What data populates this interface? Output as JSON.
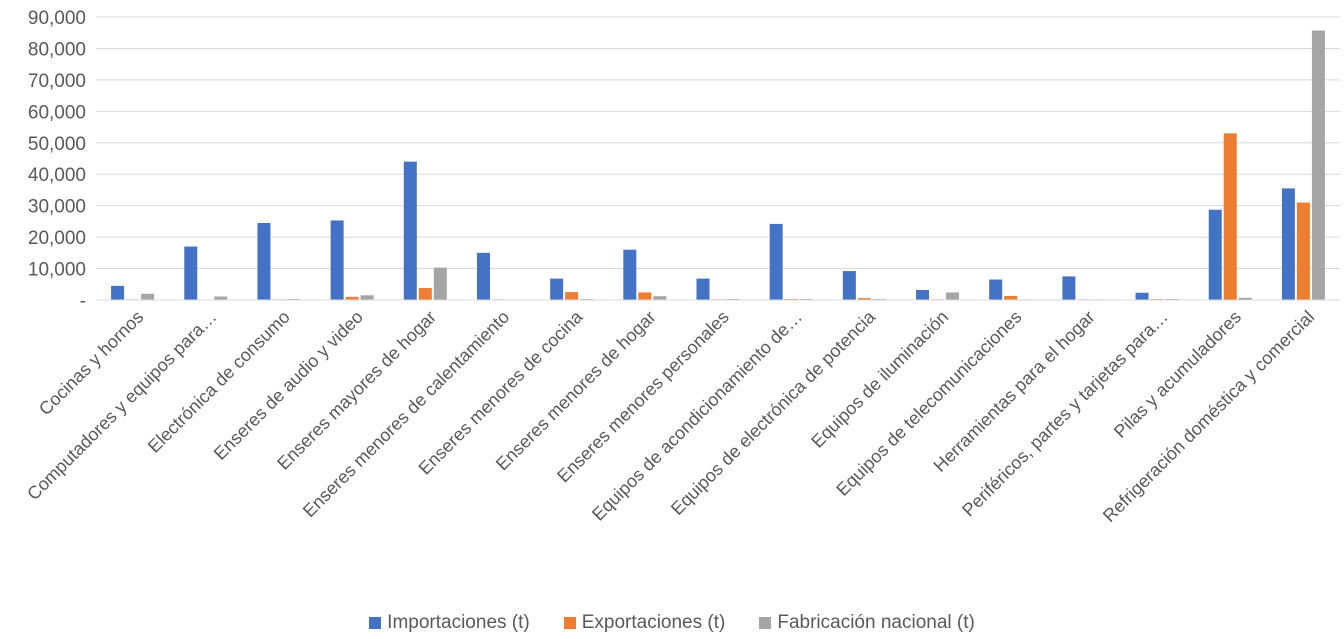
{
  "chart_data": {
    "type": "bar",
    "title": "",
    "xlabel": "",
    "ylabel": "",
    "ylim": [
      0,
      90000
    ],
    "yticks": [
      0,
      10000,
      20000,
      30000,
      40000,
      50000,
      60000,
      70000,
      80000,
      90000
    ],
    "ytick_labels": [
      "-",
      "10,000",
      "20,000",
      "30,000",
      "40,000",
      "50,000",
      "60,000",
      "70,000",
      "80,000",
      "90,000"
    ],
    "categories": [
      "Cocinas y hornos",
      "Computadores y equipos para…",
      "Electrónica de consumo",
      "Enseres de audio y video",
      "Enseres mayores de hogar",
      "Enseres menores de calentamiento",
      "Enseres menores de cocina",
      "Enseres menores de hogar",
      "Enseres menores personales",
      "Equipos de acondicionamiento de…",
      "Equipos de electrónica de potencia",
      "Equipos de iluminación",
      "Equipos de telecomunicaciones",
      "Herramientas para el hogar",
      "Periféricos, partes y tarjetas para…",
      "Pilas y acumuladores",
      "Refrigeración doméstica y comercial"
    ],
    "series": [
      {
        "name": "Importaciones (t)",
        "color": "#4472C4",
        "values": [
          4500,
          17000,
          24500,
          25300,
          44000,
          15000,
          6800,
          16000,
          6800,
          24200,
          9200,
          3200,
          6500,
          7500,
          2300,
          28700,
          35500
        ]
      },
      {
        "name": "Exportaciones (t)",
        "color": "#ED7D31",
        "values": [
          200,
          150,
          200,
          1000,
          3800,
          200,
          2500,
          2400,
          200,
          300,
          600,
          200,
          1300,
          200,
          300,
          53000,
          31000
        ]
      },
      {
        "name": "Fabricación nacional (t)",
        "color": "#A5A5A5",
        "values": [
          2000,
          1100,
          300,
          1500,
          10300,
          100,
          300,
          1200,
          300,
          300,
          300,
          2400,
          200,
          200,
          300,
          700,
          85700
        ]
      }
    ],
    "grid": true,
    "legend_position": "bottom"
  }
}
